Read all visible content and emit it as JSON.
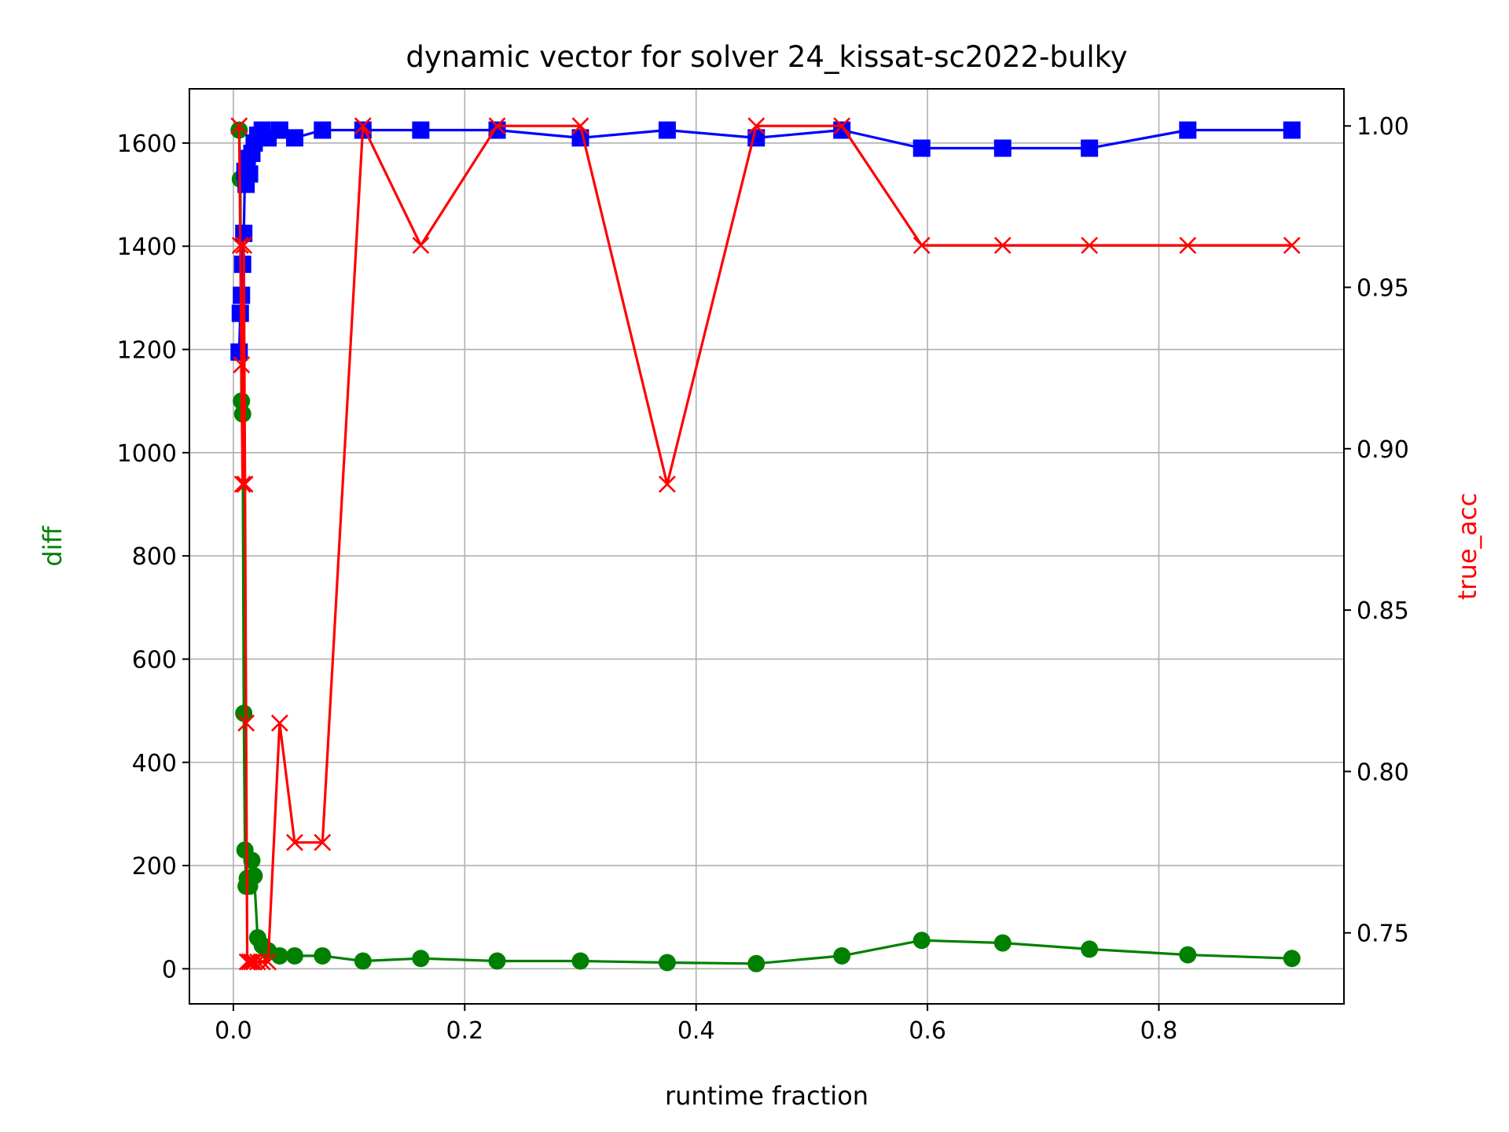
{
  "chart_data": {
    "type": "line",
    "title": "dynamic vector for solver 24_kissat-sc2022-bulky",
    "xlabel": "runtime fraction",
    "ylabel_left": "diff",
    "ylabel_right": "true_acc",
    "xlim": [
      -0.038,
      0.96
    ],
    "ylim_left": [
      -68,
      1705
    ],
    "ylim_right": [
      0.728,
      1.0115
    ],
    "x_ticks": [
      0.0,
      0.2,
      0.4,
      0.6,
      0.8
    ],
    "x_tick_labels": [
      "0.0",
      "0.2",
      "0.4",
      "0.6",
      "0.8"
    ],
    "y_left_ticks": [
      0,
      200,
      400,
      600,
      800,
      1000,
      1200,
      1400,
      1600
    ],
    "y_left_tick_labels": [
      "0",
      "200",
      "400",
      "600",
      "800",
      "1000",
      "1200",
      "1400",
      "1600"
    ],
    "y_right_ticks": [
      0.75,
      0.8,
      0.85,
      0.9,
      0.95,
      1.0
    ],
    "y_right_tick_labels": [
      "0.75",
      "0.80",
      "0.85",
      "0.90",
      "0.95",
      "1.00"
    ],
    "grid": true,
    "series": [
      {
        "axis": "left",
        "color": "#008000",
        "marker": "circle",
        "x": [
          0.005,
          0.006,
          0.007,
          0.008,
          0.009,
          0.01,
          0.011,
          0.012,
          0.014,
          0.016,
          0.018,
          0.021,
          0.025,
          0.03,
          0.04,
          0.053,
          0.077,
          0.112,
          0.162,
          0.228,
          0.3,
          0.375,
          0.452,
          0.526,
          0.595,
          0.665,
          0.74,
          0.825,
          0.915
        ],
        "y": [
          1625,
          1530,
          1100,
          1075,
          495,
          230,
          160,
          175,
          160,
          210,
          180,
          60,
          45,
          35,
          25,
          25,
          25,
          15,
          20,
          15,
          15,
          12,
          10,
          25,
          55,
          50,
          38,
          27,
          20
        ]
      },
      {
        "axis": "left",
        "color": "#0000ff",
        "marker": "square",
        "x": [
          0.005,
          0.006,
          0.007,
          0.008,
          0.009,
          0.01,
          0.011,
          0.012,
          0.014,
          0.016,
          0.018,
          0.021,
          0.025,
          0.03,
          0.04,
          0.053,
          0.077,
          0.112,
          0.162,
          0.228,
          0.3,
          0.375,
          0.452,
          0.526,
          0.595,
          0.665,
          0.74,
          0.825,
          0.915
        ],
        "y": [
          1195,
          1270,
          1305,
          1365,
          1425,
          1545,
          1520,
          1570,
          1540,
          1580,
          1600,
          1615,
          1625,
          1610,
          1625,
          1610,
          1625,
          1625,
          1625,
          1625,
          1610,
          1625,
          1610,
          1625,
          1590,
          1590,
          1590,
          1625,
          1625
        ]
      },
      {
        "axis": "right",
        "color": "#ff0000",
        "marker": "x",
        "x": [
          0.005,
          0.006,
          0.007,
          0.008,
          0.009,
          0.01,
          0.011,
          0.012,
          0.014,
          0.016,
          0.018,
          0.021,
          0.025,
          0.03,
          0.04,
          0.053,
          0.077,
          0.112,
          0.162,
          0.228,
          0.3,
          0.375,
          0.452,
          0.526,
          0.595,
          0.665,
          0.74,
          0.825,
          0.915
        ],
        "y": [
          1.0,
          0.963,
          0.926,
          0.889,
          0.963,
          0.889,
          0.815,
          0.741,
          0.741,
          0.741,
          0.741,
          0.741,
          0.741,
          0.741,
          0.815,
          0.778,
          0.778,
          1.0,
          0.963,
          1.0,
          1.0,
          0.889,
          1.0,
          1.0,
          0.963,
          0.963,
          0.963,
          0.963,
          0.963
        ]
      }
    ]
  }
}
